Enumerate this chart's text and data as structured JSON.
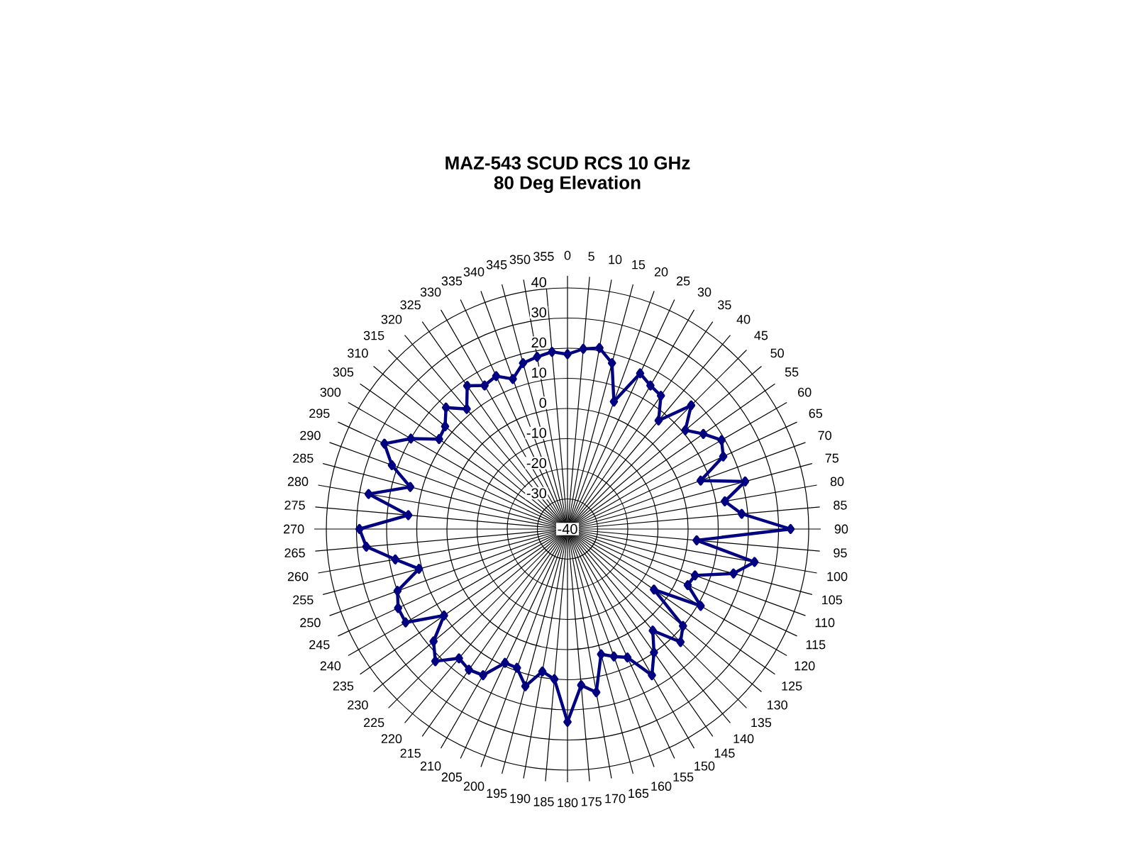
{
  "chart_data": {
    "type": "radar",
    "title": "MAZ-543 SCUD RCS 10 GHz",
    "subtitle": "80 Deg Elevation",
    "categories": [
      "0",
      "5",
      "10",
      "15",
      "20",
      "25",
      "30",
      "35",
      "40",
      "45",
      "50",
      "55",
      "60",
      "65",
      "70",
      "75",
      "80",
      "85",
      "90",
      "95",
      "100",
      "105",
      "110",
      "115",
      "120",
      "125",
      "130",
      "135",
      "140",
      "145",
      "150",
      "155",
      "160",
      "165",
      "170",
      "175",
      "180",
      "185",
      "190",
      "195",
      "200",
      "205",
      "210",
      "215",
      "220",
      "225",
      "230",
      "235",
      "240",
      "245",
      "250",
      "255",
      "260",
      "265",
      "270",
      "275",
      "280",
      "285",
      "290",
      "295",
      "300",
      "305",
      "310",
      "315",
      "320",
      "325",
      "330",
      "335",
      "340",
      "345",
      "350",
      "355"
    ],
    "series": [
      {
        "color": "#000080",
        "values": [
          18,
          20,
          21,
          17,
          5,
          17,
          15,
          14,
          7,
          18,
          11,
          15,
          19,
          17,
          7,
          21,
          13,
          18,
          34,
          3,
          23,
          17,
          5,
          4,
          11,
          -5,
          10,
          13,
          4,
          10,
          16,
          7,
          5,
          3,
          15,
          12,
          24,
          10,
          8,
          14,
          9,
          9,
          16,
          17,
          16,
          22,
          18,
          10,
          22,
          22,
          20,
          11,
          18,
          27,
          29,
          13,
          27,
          14,
          22,
          27,
          20,
          12,
          13,
          17,
          12,
          18,
          15,
          16,
          13,
          17,
          18,
          19
        ]
      }
    ],
    "ylim": [
      -40,
      40
    ],
    "yticks": [
      -40,
      -30,
      -20,
      -10,
      0,
      10,
      20,
      30,
      40
    ],
    "grid": true,
    "marker": "diamond",
    "line_style": "solid"
  }
}
